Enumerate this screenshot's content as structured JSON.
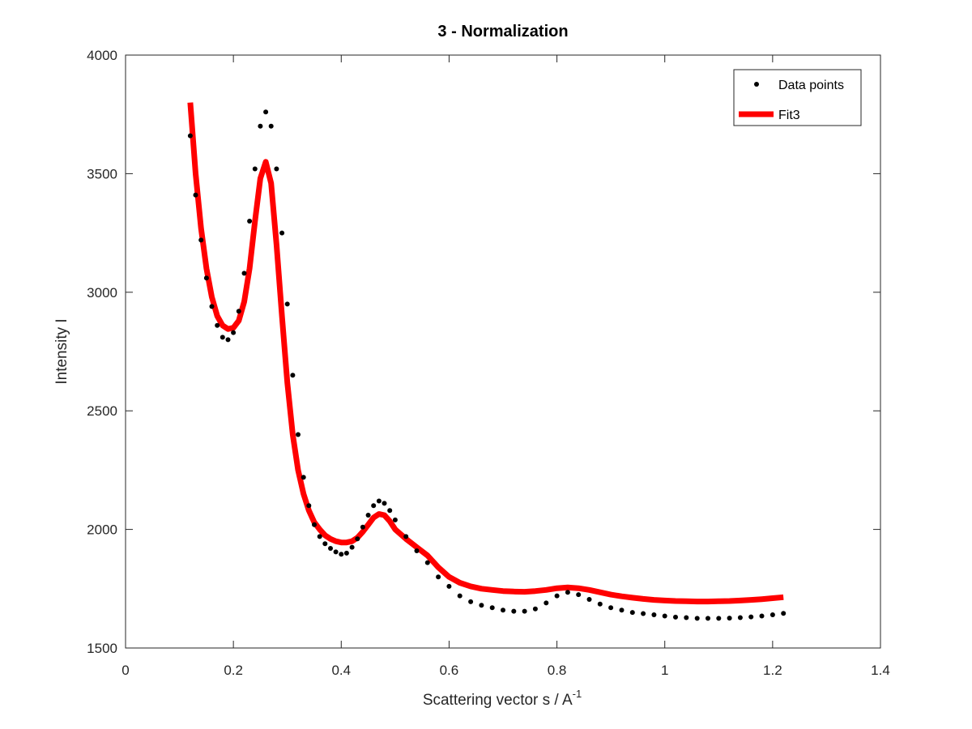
{
  "chart_data": {
    "type": "scatter",
    "title": "3 - Normalization",
    "xlabel": "Scattering vector s / A",
    "xlabel_superscript": "-1",
    "ylabel": "Intensity I",
    "xlim": [
      0,
      1.4
    ],
    "ylim": [
      1500,
      4000
    ],
    "xticks": [
      0,
      0.2,
      0.4,
      0.6,
      0.8,
      1,
      1.2,
      1.4
    ],
    "xtick_labels": [
      "0",
      "0.2",
      "0.4",
      "0.6",
      "0.8",
      "1",
      "1.2",
      "1.4"
    ],
    "yticks": [
      1500,
      2000,
      2500,
      3000,
      3500,
      4000
    ],
    "ytick_labels": [
      "1500",
      "2000",
      "2500",
      "3000",
      "3500",
      "4000"
    ],
    "grid": false,
    "legend_position": "top-right",
    "legend": [
      "Data points",
      "Fit3"
    ],
    "series": [
      {
        "name": "Data points",
        "kind": "points",
        "color": "#000000",
        "x": [
          0.12,
          0.13,
          0.14,
          0.15,
          0.16,
          0.17,
          0.18,
          0.19,
          0.2,
          0.21,
          0.22,
          0.23,
          0.24,
          0.25,
          0.26,
          0.27,
          0.28,
          0.29,
          0.3,
          0.31,
          0.32,
          0.33,
          0.34,
          0.35,
          0.36,
          0.37,
          0.38,
          0.39,
          0.4,
          0.41,
          0.42,
          0.43,
          0.44,
          0.45,
          0.46,
          0.47,
          0.48,
          0.49,
          0.5,
          0.52,
          0.54,
          0.56,
          0.58,
          0.6,
          0.62,
          0.64,
          0.66,
          0.68,
          0.7,
          0.72,
          0.74,
          0.76,
          0.78,
          0.8,
          0.82,
          0.84,
          0.86,
          0.88,
          0.9,
          0.92,
          0.94,
          0.96,
          0.98,
          1.0,
          1.02,
          1.04,
          1.06,
          1.08,
          1.1,
          1.12,
          1.14,
          1.16,
          1.18,
          1.2,
          1.22
        ],
        "y": [
          3660,
          3410,
          3220,
          3060,
          2940,
          2860,
          2810,
          2800,
          2830,
          2920,
          3080,
          3300,
          3520,
          3700,
          3760,
          3700,
          3520,
          3250,
          2950,
          2650,
          2400,
          2220,
          2100,
          2020,
          1970,
          1940,
          1920,
          1905,
          1895,
          1900,
          1925,
          1960,
          2010,
          2060,
          2100,
          2120,
          2110,
          2080,
          2040,
          1970,
          1910,
          1860,
          1800,
          1760,
          1720,
          1695,
          1680,
          1670,
          1660,
          1655,
          1655,
          1665,
          1690,
          1720,
          1735,
          1725,
          1705,
          1685,
          1670,
          1660,
          1650,
          1645,
          1640,
          1635,
          1630,
          1628,
          1625,
          1625,
          1625,
          1626,
          1628,
          1631,
          1635,
          1640,
          1646
        ]
      },
      {
        "name": "Fit3",
        "kind": "line",
        "color": "#ff0000",
        "x": [
          0.12,
          0.13,
          0.14,
          0.15,
          0.16,
          0.17,
          0.18,
          0.19,
          0.2,
          0.21,
          0.22,
          0.23,
          0.24,
          0.25,
          0.26,
          0.27,
          0.28,
          0.29,
          0.3,
          0.31,
          0.32,
          0.33,
          0.34,
          0.35,
          0.36,
          0.37,
          0.38,
          0.39,
          0.4,
          0.41,
          0.42,
          0.43,
          0.44,
          0.45,
          0.46,
          0.47,
          0.48,
          0.49,
          0.5,
          0.52,
          0.54,
          0.56,
          0.58,
          0.6,
          0.62,
          0.64,
          0.66,
          0.68,
          0.7,
          0.72,
          0.74,
          0.76,
          0.78,
          0.8,
          0.82,
          0.84,
          0.86,
          0.88,
          0.9,
          0.92,
          0.94,
          0.96,
          0.98,
          1.0,
          1.02,
          1.04,
          1.06,
          1.08,
          1.1,
          1.12,
          1.14,
          1.16,
          1.18,
          1.2,
          1.22
        ],
        "y": [
          3800,
          3500,
          3270,
          3100,
          2980,
          2900,
          2860,
          2845,
          2850,
          2880,
          2960,
          3100,
          3300,
          3480,
          3550,
          3460,
          3200,
          2900,
          2620,
          2400,
          2250,
          2150,
          2080,
          2030,
          2000,
          1975,
          1960,
          1950,
          1945,
          1945,
          1950,
          1965,
          1990,
          2020,
          2050,
          2065,
          2060,
          2035,
          2000,
          1960,
          1925,
          1890,
          1840,
          1800,
          1775,
          1760,
          1750,
          1745,
          1740,
          1738,
          1737,
          1740,
          1745,
          1752,
          1755,
          1752,
          1745,
          1735,
          1725,
          1718,
          1712,
          1707,
          1703,
          1700,
          1698,
          1697,
          1696,
          1696,
          1697,
          1698,
          1700,
          1703,
          1706,
          1710,
          1714
        ]
      }
    ]
  }
}
